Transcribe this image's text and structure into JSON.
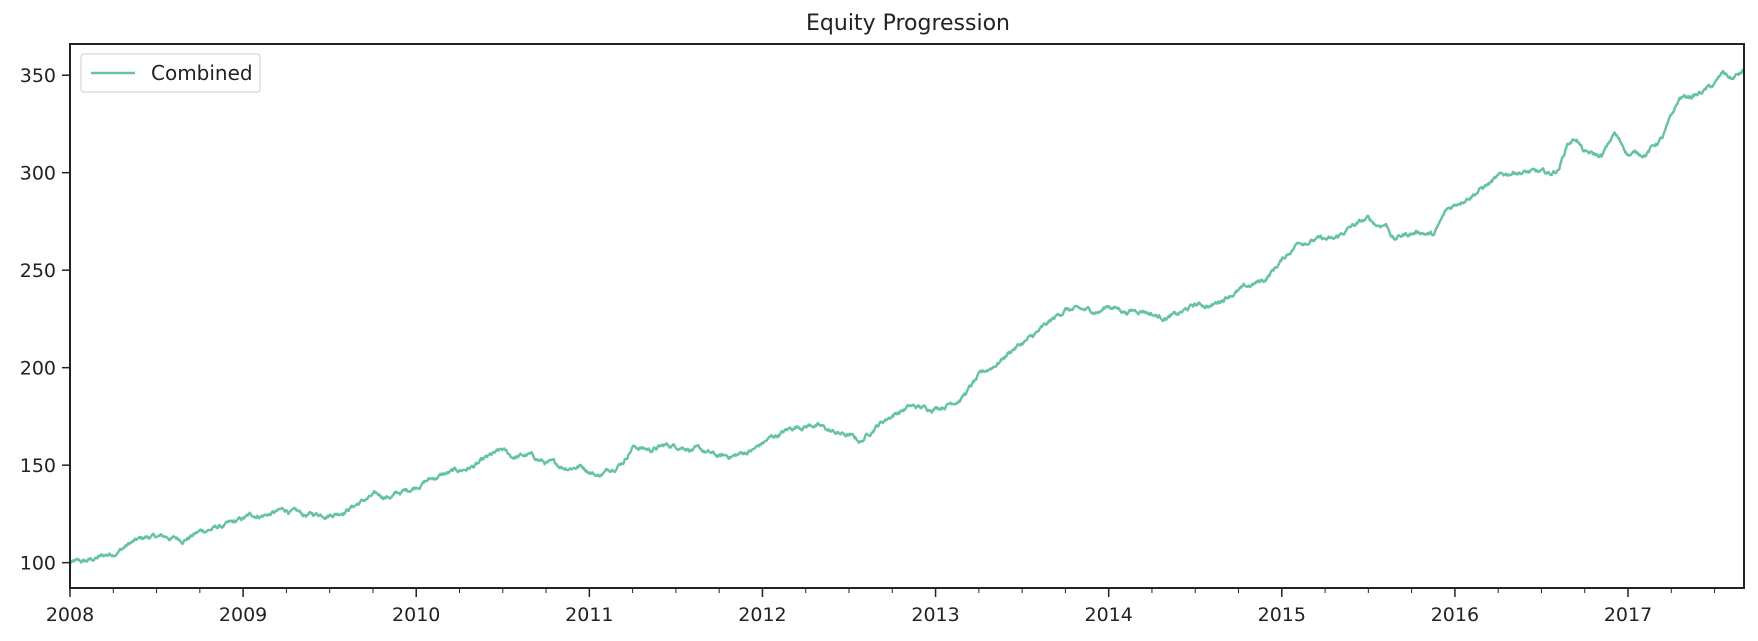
{
  "chart_data": {
    "type": "line",
    "title": "Equity Progression",
    "xlabel": "",
    "ylabel": "",
    "xlim": [
      2008.0,
      2017.67
    ],
    "ylim": [
      87,
      366
    ],
    "x_ticks": [
      "2008",
      "2009",
      "2010",
      "2011",
      "2012",
      "2013",
      "2014",
      "2015",
      "2016",
      "2017"
    ],
    "y_ticks": [
      100,
      150,
      200,
      250,
      300,
      350
    ],
    "grid": false,
    "legend_position": "upper-left",
    "series": [
      {
        "name": "Combined",
        "color": "#66c2a5",
        "points": [
          [
            2008.0,
            100
          ],
          [
            2008.08,
            100
          ],
          [
            2008.15,
            102
          ],
          [
            2008.25,
            105
          ],
          [
            2008.35,
            110
          ],
          [
            2008.45,
            113
          ],
          [
            2008.55,
            113
          ],
          [
            2008.65,
            112
          ],
          [
            2008.75,
            116
          ],
          [
            2008.85,
            118
          ],
          [
            2008.95,
            120
          ],
          [
            2009.05,
            124
          ],
          [
            2009.15,
            125
          ],
          [
            2009.25,
            127
          ],
          [
            2009.35,
            124
          ],
          [
            2009.45,
            125
          ],
          [
            2009.55,
            126
          ],
          [
            2009.65,
            130
          ],
          [
            2009.75,
            134
          ],
          [
            2009.85,
            134
          ],
          [
            2009.95,
            137
          ],
          [
            2010.05,
            142
          ],
          [
            2010.15,
            145
          ],
          [
            2010.25,
            147
          ],
          [
            2010.35,
            150
          ],
          [
            2010.45,
            155
          ],
          [
            2010.5,
            157
          ],
          [
            2010.55,
            154
          ],
          [
            2010.65,
            155
          ],
          [
            2010.75,
            151
          ],
          [
            2010.85,
            149
          ],
          [
            2010.95,
            150
          ],
          [
            2011.05,
            145
          ],
          [
            2011.1,
            147
          ],
          [
            2011.2,
            153
          ],
          [
            2011.25,
            160
          ],
          [
            2011.35,
            158
          ],
          [
            2011.45,
            160
          ],
          [
            2011.55,
            160
          ],
          [
            2011.65,
            157
          ],
          [
            2011.75,
            154
          ],
          [
            2011.85,
            155
          ],
          [
            2011.95,
            158
          ],
          [
            2012.05,
            164
          ],
          [
            2012.15,
            168
          ],
          [
            2012.2,
            170
          ],
          [
            2012.3,
            171
          ],
          [
            2012.4,
            167
          ],
          [
            2012.5,
            165
          ],
          [
            2012.57,
            162
          ],
          [
            2012.65,
            170
          ],
          [
            2012.75,
            176
          ],
          [
            2012.85,
            180
          ],
          [
            2012.95,
            179
          ],
          [
            2013.05,
            181
          ],
          [
            2013.15,
            185
          ],
          [
            2013.25,
            195
          ],
          [
            2013.35,
            202
          ],
          [
            2013.45,
            210
          ],
          [
            2013.55,
            215
          ],
          [
            2013.65,
            222
          ],
          [
            2013.75,
            230
          ],
          [
            2013.85,
            229
          ],
          [
            2013.95,
            229
          ],
          [
            2014.0,
            232
          ],
          [
            2014.1,
            229
          ],
          [
            2014.2,
            230
          ],
          [
            2014.3,
            226
          ],
          [
            2014.4,
            227
          ],
          [
            2014.5,
            232
          ],
          [
            2014.6,
            232
          ],
          [
            2014.7,
            238
          ],
          [
            2014.8,
            241
          ],
          [
            2014.9,
            245
          ],
          [
            2015.0,
            255
          ],
          [
            2015.1,
            265
          ],
          [
            2015.2,
            266
          ],
          [
            2015.3,
            265
          ],
          [
            2015.4,
            272
          ],
          [
            2015.5,
            276
          ],
          [
            2015.55,
            273
          ],
          [
            2015.6,
            274
          ],
          [
            2015.65,
            266
          ],
          [
            2015.7,
            268
          ],
          [
            2015.8,
            270
          ],
          [
            2015.88,
            268
          ],
          [
            2015.95,
            280
          ],
          [
            2016.05,
            287
          ],
          [
            2016.15,
            292
          ],
          [
            2016.25,
            297
          ],
          [
            2016.35,
            301
          ],
          [
            2016.45,
            300
          ],
          [
            2016.55,
            299
          ],
          [
            2016.6,
            302
          ],
          [
            2016.65,
            315
          ],
          [
            2016.7,
            318
          ],
          [
            2016.75,
            310
          ],
          [
            2016.85,
            308
          ],
          [
            2016.92,
            320
          ],
          [
            2017.0,
            310
          ],
          [
            2017.1,
            310
          ],
          [
            2017.2,
            318
          ],
          [
            2017.3,
            338
          ],
          [
            2017.4,
            340
          ],
          [
            2017.5,
            345
          ],
          [
            2017.55,
            351
          ],
          [
            2017.6,
            348
          ],
          [
            2017.67,
            352
          ]
        ]
      }
    ]
  }
}
